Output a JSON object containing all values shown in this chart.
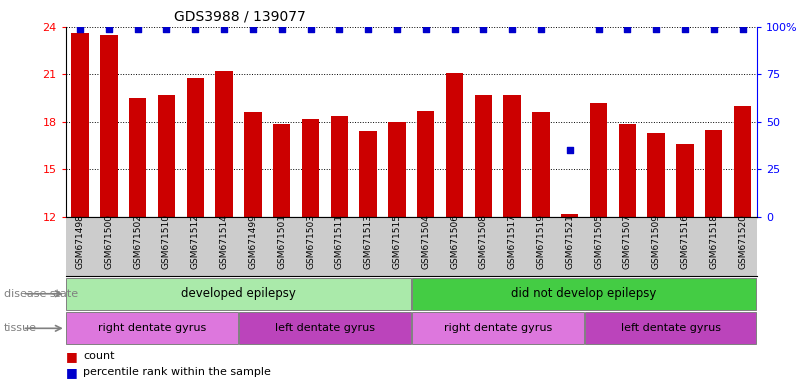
{
  "title": "GDS3988 / 139077",
  "samples": [
    "GSM671498",
    "GSM671500",
    "GSM671502",
    "GSM671510",
    "GSM671512",
    "GSM671514",
    "GSM671499",
    "GSM671501",
    "GSM671503",
    "GSM671511",
    "GSM671513",
    "GSM671515",
    "GSM671504",
    "GSM671506",
    "GSM671508",
    "GSM671517",
    "GSM671519",
    "GSM671521",
    "GSM671505",
    "GSM671507",
    "GSM671509",
    "GSM671516",
    "GSM671518",
    "GSM671520"
  ],
  "counts": [
    23.6,
    23.5,
    19.5,
    19.7,
    20.8,
    21.2,
    18.6,
    17.9,
    18.2,
    18.4,
    17.4,
    18.0,
    18.7,
    21.1,
    19.7,
    19.7,
    18.6,
    12.2,
    19.2,
    17.9,
    17.3,
    16.6,
    17.5,
    19.0
  ],
  "percentile_ranks": [
    99,
    99,
    99,
    99,
    99,
    99,
    99,
    99,
    99,
    99,
    99,
    99,
    99,
    99,
    99,
    99,
    99,
    35,
    99,
    99,
    99,
    99,
    99,
    99
  ],
  "bar_color": "#cc0000",
  "dot_color": "#0000cc",
  "ylim_left": [
    12,
    24
  ],
  "ylim_right": [
    0,
    100
  ],
  "yticks_left": [
    12,
    15,
    18,
    21,
    24
  ],
  "yticks_right": [
    0,
    25,
    50,
    75,
    100
  ],
  "disease_state_groups": [
    {
      "label": "developed epilepsy",
      "start": 0,
      "end": 12,
      "color": "#aaeaaa"
    },
    {
      "label": "did not develop epilepsy",
      "start": 12,
      "end": 24,
      "color": "#44cc44"
    }
  ],
  "tissue_groups": [
    {
      "label": "right dentate gyrus",
      "start": 0,
      "end": 6,
      "color": "#dd77dd"
    },
    {
      "label": "left dentate gyrus",
      "start": 6,
      "end": 12,
      "color": "#bb44bb"
    },
    {
      "label": "right dentate gyrus",
      "start": 12,
      "end": 18,
      "color": "#dd77dd"
    },
    {
      "label": "left dentate gyrus",
      "start": 18,
      "end": 24,
      "color": "#bb44bb"
    }
  ],
  "legend_count_label": "count",
  "legend_pct_label": "percentile rank within the sample",
  "disease_state_label": "disease state",
  "tissue_label": "tissue",
  "bg_color": "#ffffff",
  "plot_bg": "#ffffff",
  "xtick_bg": "#cccccc"
}
